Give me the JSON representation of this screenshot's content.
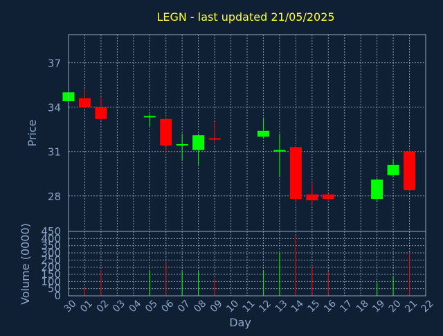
{
  "colors": {
    "background": "#0f2034",
    "title": "#ffff33",
    "up": "#00ff00",
    "down": "#ff0000",
    "axis_text": "#8fa6c8"
  },
  "chart_data": {
    "type": "candlestick",
    "title": "LEGN - last updated 21/05/2025",
    "xlabel": "Day",
    "ylabel": "Price",
    "y2label": "Volume (0000)",
    "grid": true,
    "categories": [
      "30",
      "01",
      "02",
      "03",
      "04",
      "05",
      "06",
      "07",
      "08",
      "09",
      "10",
      "11",
      "12",
      "13",
      "14",
      "15",
      "16",
      "17",
      "18",
      "19",
      "20",
      "21",
      "22"
    ],
    "price_axis": {
      "ylim": [
        25.6,
        38.9
      ],
      "ticks": [
        "37",
        "34",
        "31",
        "28"
      ],
      "tick_values": [
        37,
        34,
        31,
        28
      ]
    },
    "volume_axis": {
      "ylim": [
        0,
        450
      ],
      "ticks": [
        "450",
        "400",
        "350",
        "300",
        "250",
        "200",
        "150",
        "100",
        "50",
        "0"
      ],
      "tick_values": [
        450,
        400,
        350,
        300,
        250,
        200,
        150,
        100,
        50,
        0
      ]
    },
    "candles": [
      {
        "day": "30",
        "open": 34.4,
        "close": 35.0,
        "high": 35.0,
        "low": 34.4,
        "volume": 0
      },
      {
        "day": "01",
        "open": 34.6,
        "close": 34.0,
        "high": 35.2,
        "low": 33.9,
        "volume": 60
      },
      {
        "day": "02",
        "open": 34.0,
        "close": 33.2,
        "high": 34.7,
        "low": 33.1,
        "volume": 180
      },
      {
        "day": "05",
        "open": 33.4,
        "close": 33.4,
        "high": 33.5,
        "low": 32.7,
        "volume": 180
      },
      {
        "day": "06",
        "open": 33.2,
        "close": 31.4,
        "high": 33.3,
        "low": 30.9,
        "volume": 240
      },
      {
        "day": "07",
        "open": 31.4,
        "close": 31.5,
        "high": 32.2,
        "low": 30.4,
        "volume": 170
      },
      {
        "day": "08",
        "open": 31.1,
        "close": 32.1,
        "high": 32.2,
        "low": 30.1,
        "volume": 170
      },
      {
        "day": "09",
        "open": 31.9,
        "close": 31.8,
        "high": 33.0,
        "low": 31.5,
        "volume": 120
      },
      {
        "day": "12",
        "open": 32.0,
        "close": 32.4,
        "high": 33.3,
        "low": 31.9,
        "volume": 180
      },
      {
        "day": "13",
        "open": 31.0,
        "close": 31.1,
        "high": 32.2,
        "low": 29.3,
        "volume": 300
      },
      {
        "day": "14",
        "open": 31.3,
        "close": 27.8,
        "high": 31.4,
        "low": 27.6,
        "volume": 420
      },
      {
        "day": "15",
        "open": 28.1,
        "close": 27.7,
        "high": 28.9,
        "low": 27.4,
        "volume": 200
      },
      {
        "day": "16",
        "open": 28.1,
        "close": 27.8,
        "high": 28.1,
        "low": 27.6,
        "volume": 170
      },
      {
        "day": "19",
        "open": 27.8,
        "close": 29.1,
        "high": 29.2,
        "low": 27.6,
        "volume": 90
      },
      {
        "day": "20",
        "open": 29.4,
        "close": 30.1,
        "high": 30.5,
        "low": 29.3,
        "volume": 140
      },
      {
        "day": "21",
        "open": 31.0,
        "close": 28.4,
        "high": 31.2,
        "low": 28.3,
        "volume": 300
      }
    ]
  }
}
